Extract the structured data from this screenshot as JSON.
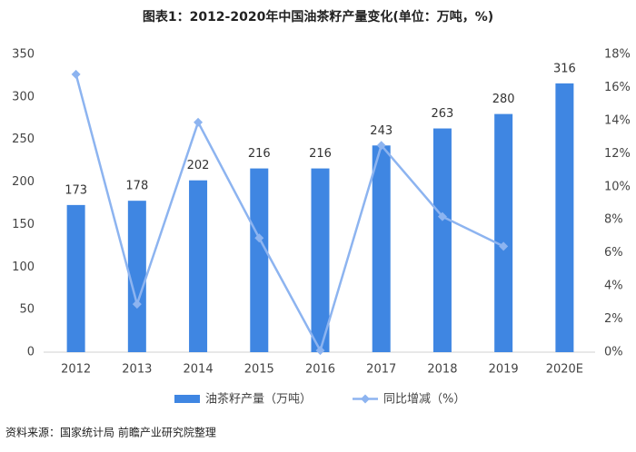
{
  "chart_data": {
    "type": "bar",
    "title": "图表1：2012-2020年中国油茶籽产量变化(单位：万吨，%)",
    "source": "资料来源：国家统计局 前瞻产业研究院整理",
    "categories": [
      "2012",
      "2013",
      "2014",
      "2015",
      "2016",
      "2017",
      "2018",
      "2019",
      "2020E"
    ],
    "series": [
      {
        "name": "油茶籽产量（万吨）",
        "color": "#3f86e2",
        "type": "bar",
        "values": [
          173,
          178,
          202,
          216,
          216,
          243,
          263,
          280,
          316
        ]
      },
      {
        "name": "同比增减（%）",
        "color": "#8db4f0",
        "type": "line",
        "axis": "y2",
        "values": [
          16.8,
          2.9,
          13.9,
          6.9,
          0.1,
          12.5,
          8.2,
          6.4,
          null
        ]
      }
    ],
    "ylim": [
      0,
      350
    ],
    "yticks": [
      0,
      50,
      100,
      150,
      200,
      250,
      300,
      350
    ],
    "y2lim": [
      0,
      18
    ],
    "y2ticks": [
      {
        "value": 0,
        "label": "0%"
      },
      {
        "value": 2,
        "label": "2%"
      },
      {
        "value": 4,
        "label": "4%"
      },
      {
        "value": 6,
        "label": "6%"
      },
      {
        "value": 8,
        "label": "8%"
      },
      {
        "value": 10,
        "label": "10%"
      },
      {
        "value": 12,
        "label": "12%"
      },
      {
        "value": 14,
        "label": "14%"
      },
      {
        "value": 16,
        "label": "16%"
      },
      {
        "value": 18,
        "label": "18%"
      }
    ],
    "grid": false,
    "legend": "bottom"
  }
}
